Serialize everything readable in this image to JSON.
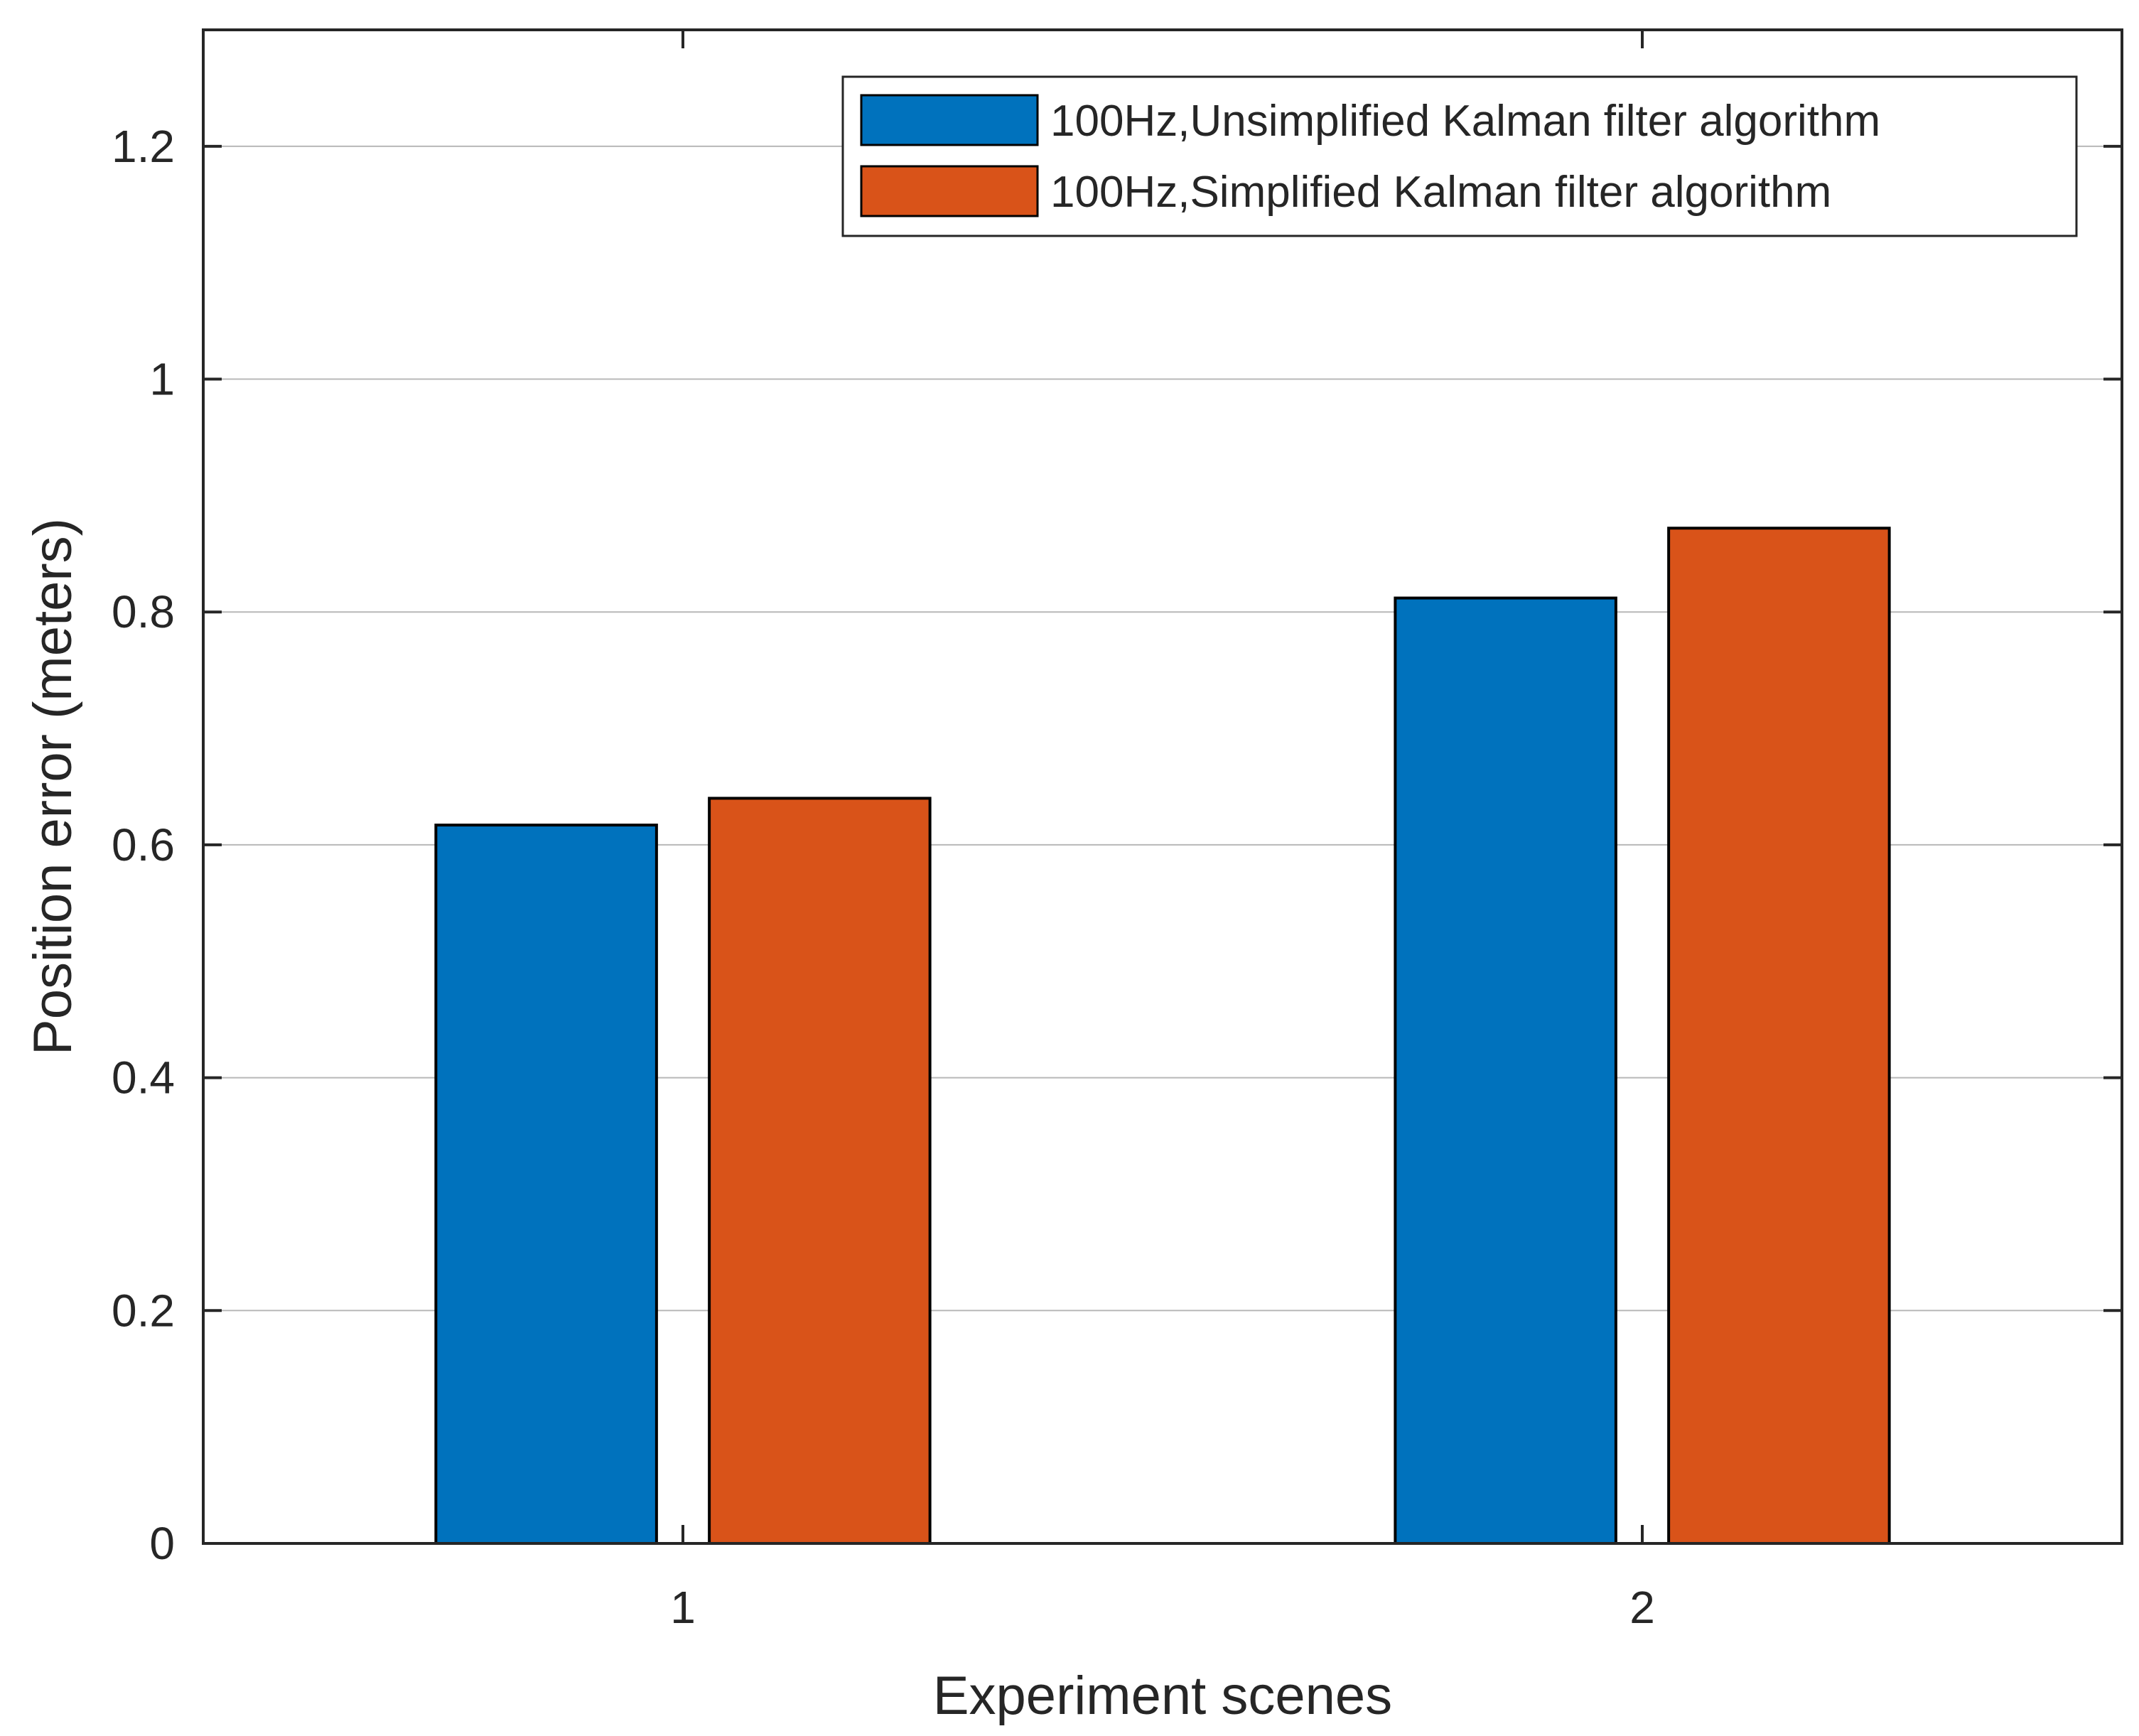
{
  "chart_data": {
    "type": "bar",
    "title": "",
    "xlabel": "Experiment scenes",
    "ylabel": "Position error (meters)",
    "categories": [
      "1",
      "2"
    ],
    "series": [
      {
        "name": "100Hz,Unsimplified Kalman filter algorithm",
        "color": "#0072BD",
        "values": [
          0.617,
          0.812
        ]
      },
      {
        "name": "100Hz,Simplified Kalman filter algorithm",
        "color": "#D95319",
        "values": [
          0.64,
          0.872
        ]
      }
    ],
    "ylim": [
      0,
      1.3
    ],
    "yticks": [
      0,
      0.2,
      0.4,
      0.6,
      0.8,
      1,
      1.2
    ],
    "ytick_labels": [
      "0",
      "0.2",
      "0.4",
      "0.6",
      "0.8",
      "1",
      "1.2"
    ],
    "xlim": [
      0.5,
      2.5
    ],
    "grid": "y",
    "legend_position": "top-right"
  }
}
